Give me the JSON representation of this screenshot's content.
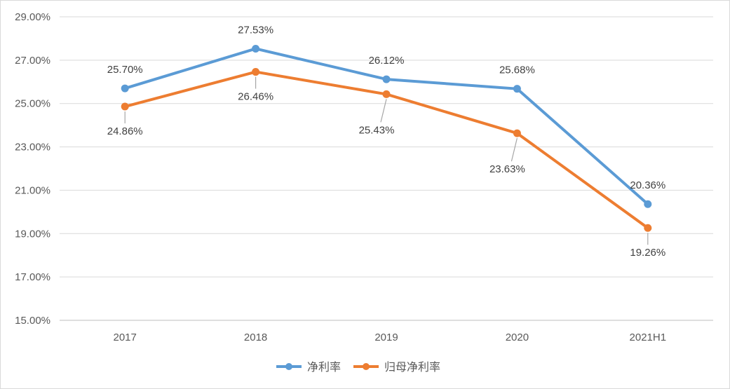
{
  "chart_data": {
    "type": "line",
    "title": "",
    "xlabel": "",
    "ylabel": "",
    "categories": [
      "2017",
      "2018",
      "2019",
      "2020",
      "2021H1"
    ],
    "ylim": [
      15,
      29
    ],
    "yticks": [
      15,
      17,
      19,
      21,
      23,
      25,
      27,
      29
    ],
    "ytick_labels": [
      "15.00%",
      "17.00%",
      "19.00%",
      "21.00%",
      "23.00%",
      "25.00%",
      "27.00%",
      "29.00%"
    ],
    "grid": true,
    "legend_position": "bottom",
    "series": [
      {
        "name": "净利率",
        "color": "#5B9BD5",
        "values": [
          25.7,
          27.53,
          26.12,
          25.68,
          20.36
        ],
        "labels": [
          "25.70%",
          "27.53%",
          "26.12%",
          "25.68%",
          "20.36%"
        ]
      },
      {
        "name": "归母净利率",
        "color": "#ED7D31",
        "values": [
          24.86,
          26.46,
          25.43,
          23.63,
          19.26
        ],
        "labels": [
          "24.86%",
          "26.46%",
          "25.43%",
          "23.63%",
          "19.26%"
        ]
      }
    ]
  }
}
